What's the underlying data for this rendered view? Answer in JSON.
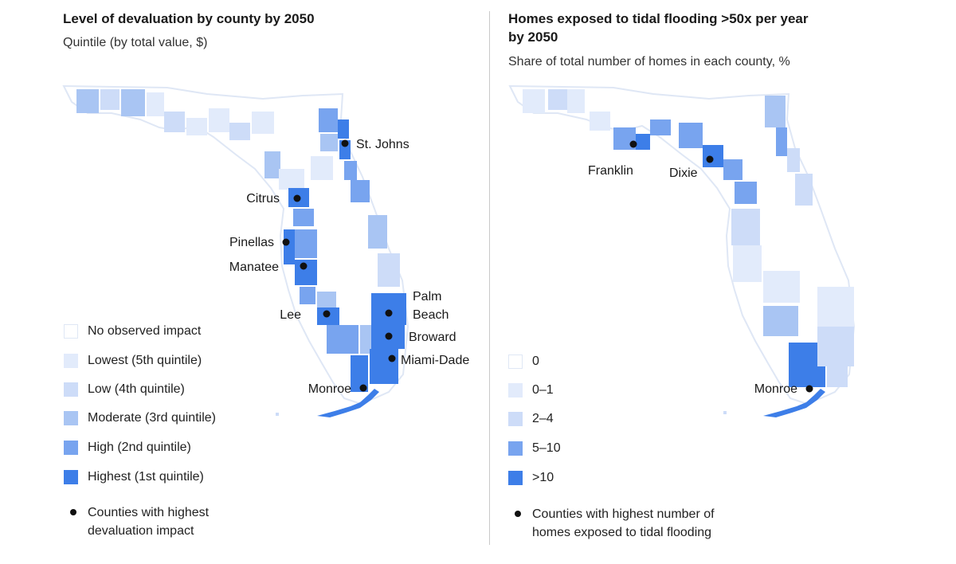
{
  "colors": {
    "none": "#ffffff",
    "q5": "#e2ebfb",
    "q4": "#cddcf8",
    "q3": "#a9c5f3",
    "q2": "#78a4ef",
    "q1": "#3d7ee8",
    "border": "#dfe7f5",
    "marker": "#111111"
  },
  "left": {
    "title": "Level of devaluation by county by 2050",
    "subtitle": "Quintile (by total value, $)",
    "counties": {
      "st_johns": "St. Johns",
      "citrus": "Citrus",
      "pinellas": "Pinellas",
      "manatee": "Manatee",
      "lee": "Lee",
      "palm_line1": "Palm",
      "palm_line2": "Beach",
      "broward": "Broward",
      "miami": "Miami-Dade",
      "monroe": "Monroe"
    },
    "legend": [
      {
        "label": "No observed impact",
        "color": "#ffffff"
      },
      {
        "label": "Lowest (5th quintile)",
        "color": "#e2ebfb"
      },
      {
        "label": "Low (4th quintile)",
        "color": "#cddcf8"
      },
      {
        "label": "Moderate (3rd quintile)",
        "color": "#a9c5f3"
      },
      {
        "label": "High (2nd quintile)",
        "color": "#78a4ef"
      },
      {
        "label": "Highest (1st quintile)",
        "color": "#3d7ee8"
      }
    ],
    "note_line1": "Counties with highest",
    "note_line2": "devaluation impact"
  },
  "right": {
    "title_line1": "Homes exposed to tidal flooding >50x per year",
    "title_line2": "by 2050",
    "subtitle": "Share of total number of homes in each county, %",
    "counties": {
      "franklin": "Franklin",
      "dixie": "Dixie",
      "monroe": "Monroe"
    },
    "legend": [
      {
        "label": "0",
        "color": "#ffffff"
      },
      {
        "label": "0–1",
        "color": "#e2ebfb"
      },
      {
        "label": "2–4",
        "color": "#cddcf8"
      },
      {
        "label": "5–10",
        "color": "#78a4ef"
      },
      {
        "label": ">10",
        "color": "#3d7ee8"
      }
    ],
    "note_line1": "Counties with highest number of",
    "note_line2": "homes exposed to tidal flooding"
  }
}
